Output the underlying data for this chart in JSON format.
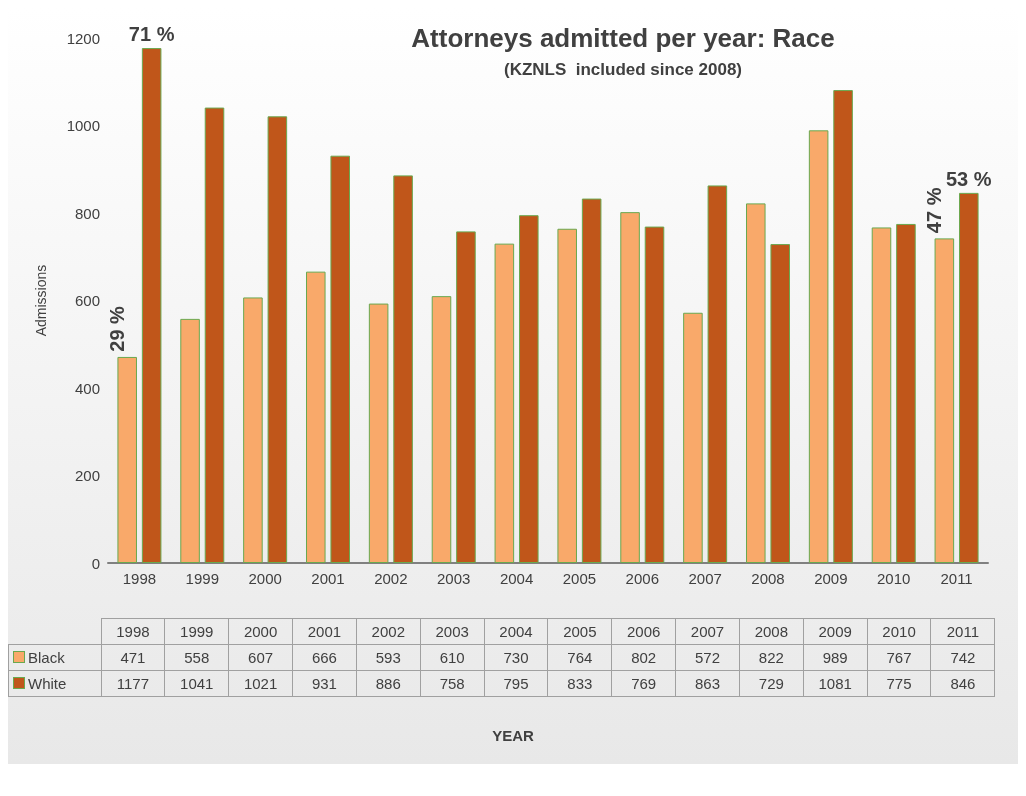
{
  "chart_data": {
    "type": "bar",
    "title": "Attorneys admitted per year: Race",
    "subtitle": "(KZNLS  included since 2008)",
    "ylabel": "Admissions",
    "categories": [
      "1998",
      "1999",
      "2000",
      "2001",
      "2002",
      "2003",
      "2004",
      "2005",
      "2006",
      "2007",
      "2008",
      "2009",
      "2010",
      "2011"
    ],
    "series": [
      {
        "name": "Black",
        "color": "#f9a96a",
        "values": [
          471,
          558,
          607,
          666,
          593,
          610,
          730,
          764,
          802,
          572,
          822,
          989,
          767,
          742
        ]
      },
      {
        "name": "White",
        "color": "#c0561a",
        "values": [
          1177,
          1041,
          1021,
          931,
          886,
          758,
          795,
          833,
          769,
          863,
          729,
          1081,
          775,
          846
        ]
      }
    ],
    "ylim": [
      0,
      1200
    ],
    "yticks": [
      0,
      200,
      400,
      600,
      800,
      1000,
      1200
    ],
    "grid": false,
    "legend": "bottom",
    "data_labels": true,
    "annotations": [
      {
        "text": "29 %",
        "x": "1998",
        "y": 471
      },
      {
        "text": "71 %",
        "x": "1998",
        "y": 1177
      },
      {
        "text": "47 %",
        "x": "2011",
        "y": 742
      },
      {
        "text": "53 %",
        "x": "2011",
        "y": 846
      },
      "YEAR"
    ]
  }
}
